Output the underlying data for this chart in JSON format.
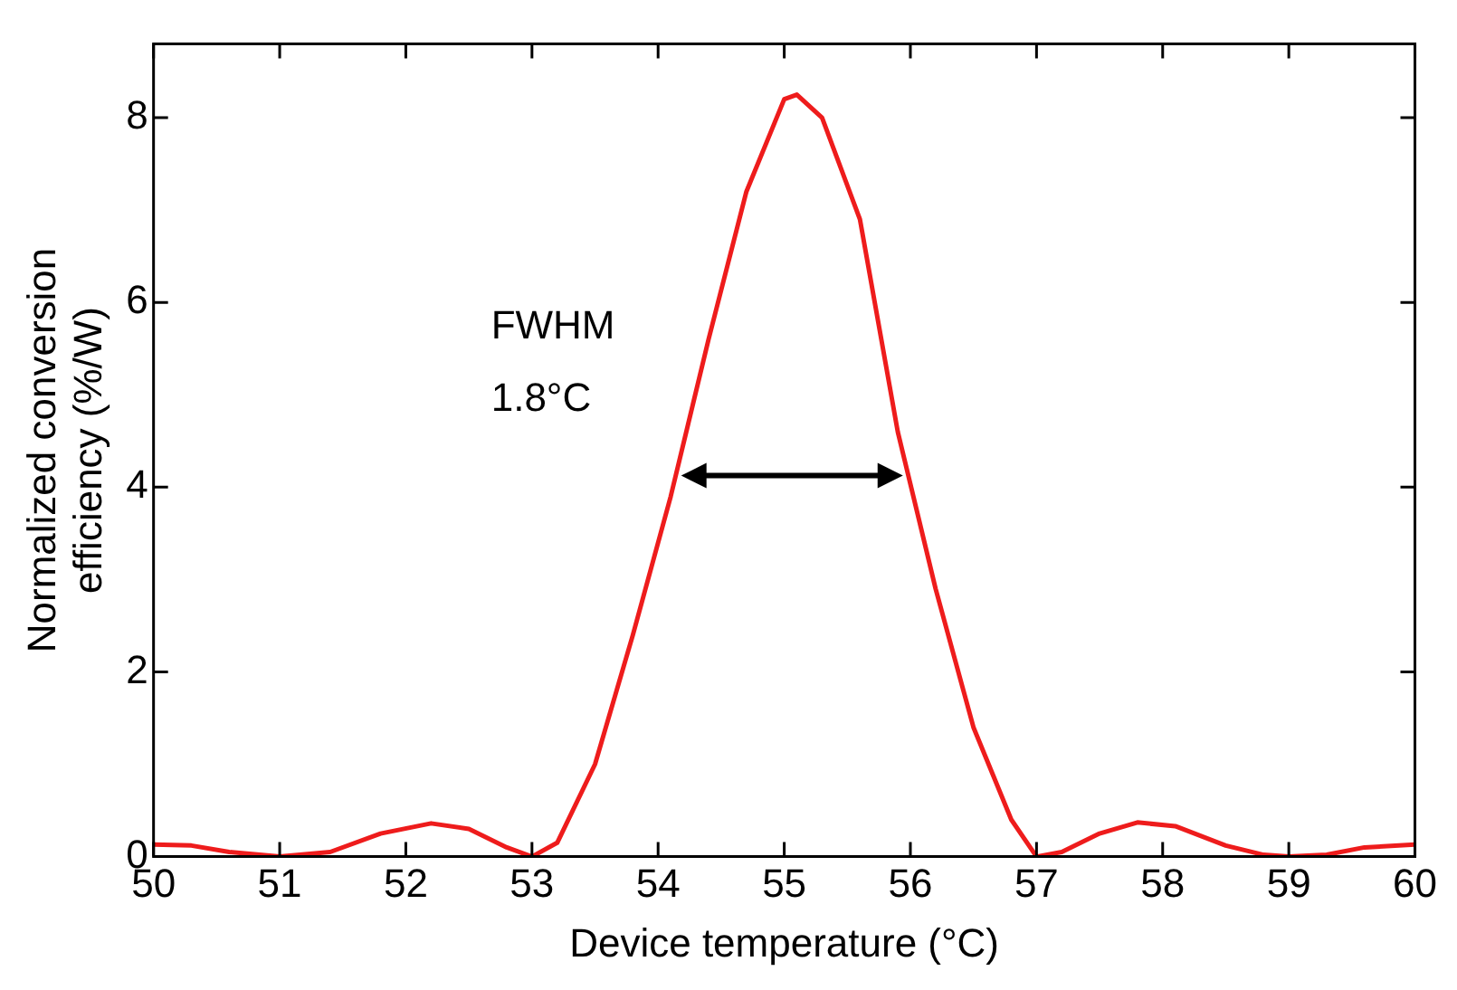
{
  "chart_data": {
    "type": "line",
    "xlabel": "Device temperature (°C)",
    "ylabel": "Normalized conversion\nefficiency (%/W)",
    "xlim": [
      50,
      60
    ],
    "xticks": [
      50,
      51,
      52,
      53,
      54,
      55,
      56,
      57,
      58,
      59,
      60
    ],
    "ylim": [
      0,
      8.8
    ],
    "yticks": [
      0,
      2,
      4,
      6,
      8
    ],
    "grid": false,
    "legend": false,
    "annotations": [
      "FWHM",
      "1.8°C"
    ],
    "series": [
      {
        "color": "#ee1c1c",
        "x": [
          50.0,
          50.3,
          50.6,
          51.0,
          51.4,
          51.8,
          52.2,
          52.5,
          52.8,
          53.0,
          53.2,
          53.5,
          53.8,
          54.1,
          54.4,
          54.7,
          55.0,
          55.1,
          55.3,
          55.6,
          55.9,
          56.2,
          56.5,
          56.8,
          57.0,
          57.2,
          57.5,
          57.8,
          58.1,
          58.5,
          58.8,
          59.0,
          59.3,
          59.6,
          60.0
        ],
        "values": [
          0.13,
          0.12,
          0.05,
          0.0,
          0.05,
          0.25,
          0.36,
          0.3,
          0.1,
          0.0,
          0.15,
          1.0,
          2.4,
          3.9,
          5.6,
          7.2,
          8.2,
          8.25,
          8.0,
          6.9,
          4.6,
          2.9,
          1.4,
          0.4,
          0.0,
          0.05,
          0.25,
          0.37,
          0.33,
          0.12,
          0.02,
          0.0,
          0.02,
          0.1,
          0.13
        ]
      }
    ]
  }
}
